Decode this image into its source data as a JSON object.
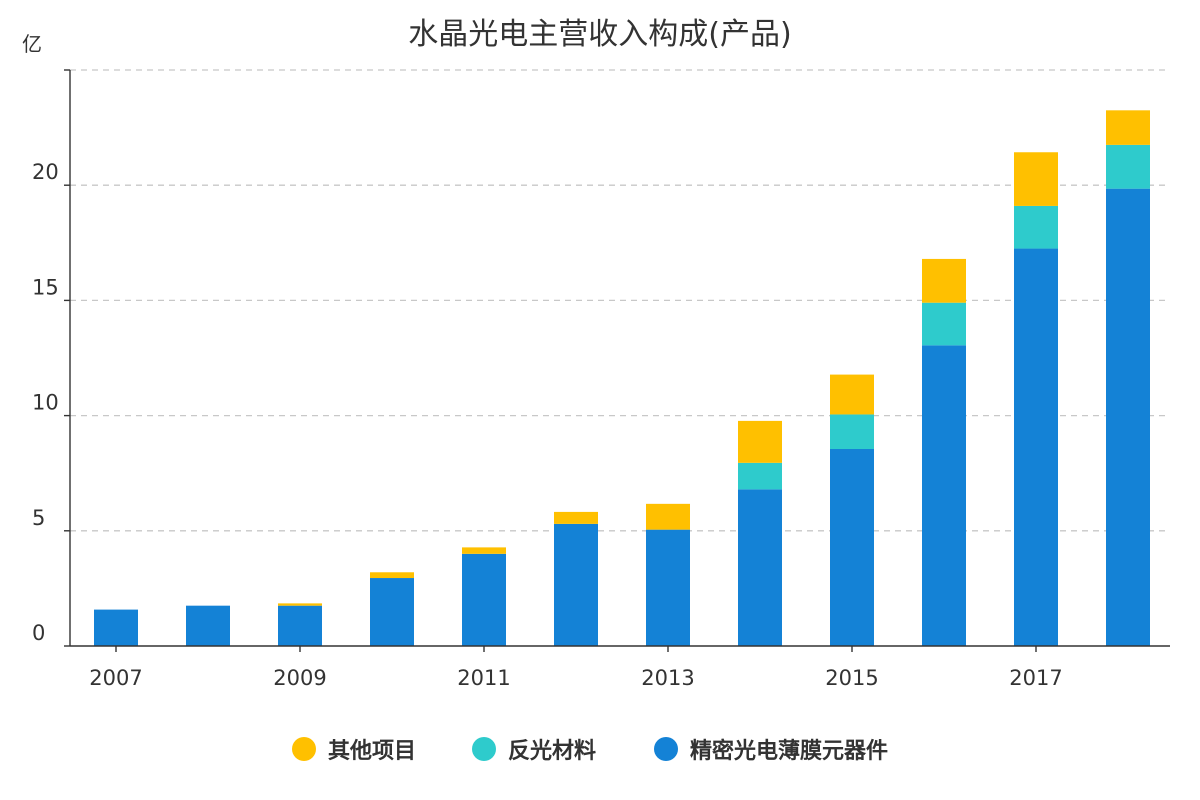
{
  "chart_data": {
    "type": "bar",
    "stacked": true,
    "title": "水晶光电主营收入构成(产品)",
    "unit": "亿",
    "categories": [
      "2007",
      "2008",
      "2009",
      "2010",
      "2011",
      "2012",
      "2013",
      "2014",
      "2015",
      "2016",
      "2017",
      "2018"
    ],
    "x_tick_labels": [
      "2007",
      "2009",
      "2011",
      "2013",
      "2015",
      "2017"
    ],
    "series": [
      {
        "name": "精密光电薄膜元器件",
        "color": "#1482d6",
        "values": [
          1.58,
          1.75,
          1.75,
          2.95,
          4.0,
          5.3,
          5.05,
          6.8,
          8.55,
          13.05,
          17.25,
          19.85
        ]
      },
      {
        "name": "反光材料",
        "color": "#2ecbcc",
        "values": [
          0,
          0,
          0,
          0,
          0,
          0,
          0,
          1.15,
          1.5,
          1.85,
          1.85,
          1.9
        ]
      },
      {
        "name": "其他项目",
        "color": "#ffc000",
        "values": [
          0,
          0,
          0.1,
          0.25,
          0.28,
          0.52,
          1.12,
          1.82,
          1.73,
          1.9,
          2.33,
          1.5
        ]
      }
    ],
    "legend_order": [
      "其他项目",
      "反光材料",
      "精密光电薄膜元器件"
    ],
    "ylim": [
      0,
      25
    ],
    "y_ticks": [
      0,
      5,
      10,
      15,
      20
    ],
    "grid": true,
    "legend_position": "bottom"
  }
}
